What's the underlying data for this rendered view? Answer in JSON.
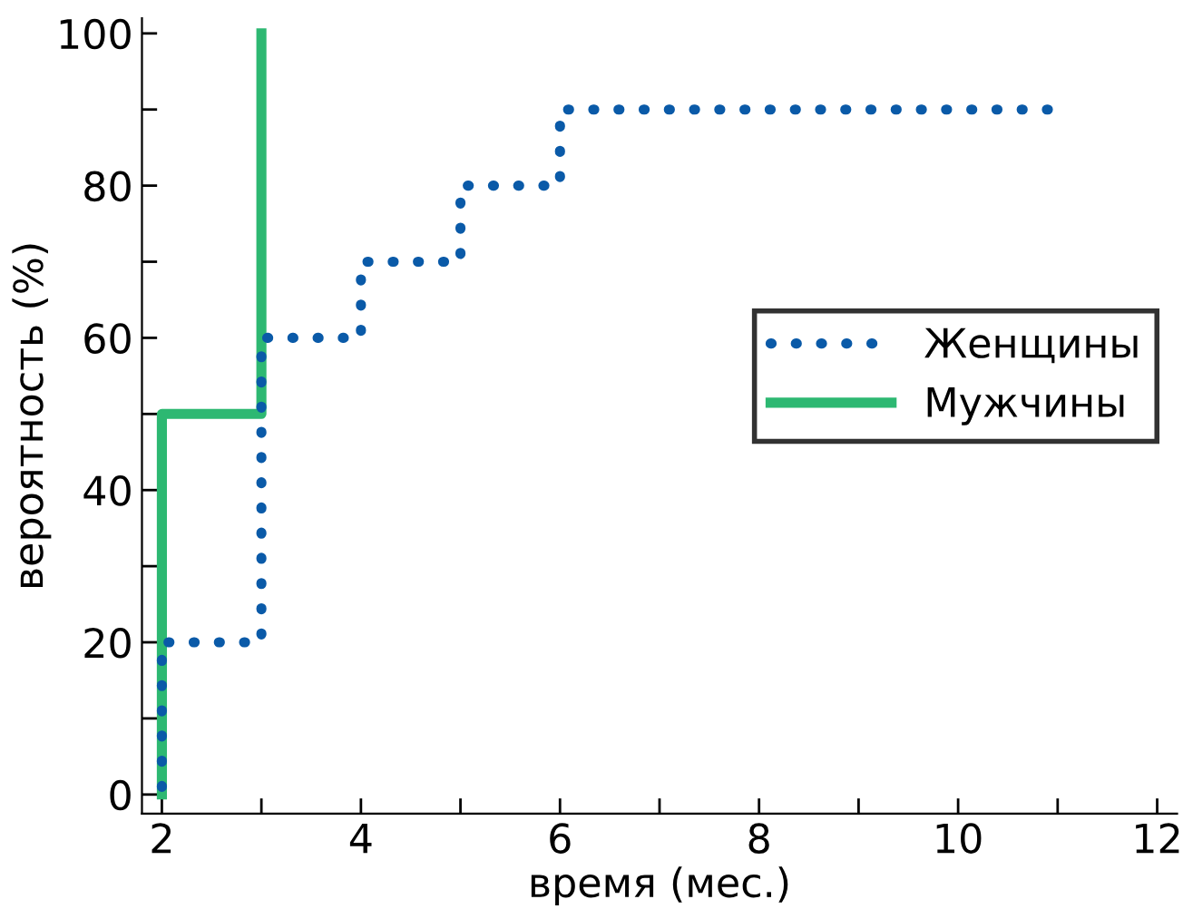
{
  "chart_data": {
    "type": "step",
    "xlabel": "время (мес.)",
    "ylabel": "вероятность (%)",
    "xlim": [
      1.8,
      12.2
    ],
    "ylim": [
      -2.5,
      102
    ],
    "xticks": [
      2,
      {
        "value": 3,
        "label": null
      },
      4,
      {
        "value": 5,
        "label": null
      },
      6,
      {
        "value": 7,
        "label": null
      },
      8,
      {
        "value": 9,
        "label": null
      },
      10,
      {
        "value": 11,
        "label": null
      },
      12
    ],
    "yticks": [
      0,
      {
        "value": 10,
        "label": null
      },
      20,
      {
        "value": 30,
        "label": null
      },
      40,
      {
        "value": 50,
        "label": null
      },
      60,
      {
        "value": 70,
        "label": null
      },
      80,
      {
        "value": 90,
        "label": null
      },
      100
    ],
    "grid": false,
    "legend": "right",
    "series": [
      {
        "name": "Женщины",
        "color": "#0a5aa8",
        "line_style": "dotted",
        "x": [
          2,
          2,
          3,
          4,
          5,
          6,
          11
        ],
        "values": [
          1,
          20,
          60,
          70,
          80,
          90,
          90
        ]
      },
      {
        "name": "Мужчины",
        "color": "#2db872",
        "line_style": "solid",
        "x": [
          2,
          2,
          3
        ],
        "values": [
          0,
          50,
          100
        ]
      }
    ]
  }
}
